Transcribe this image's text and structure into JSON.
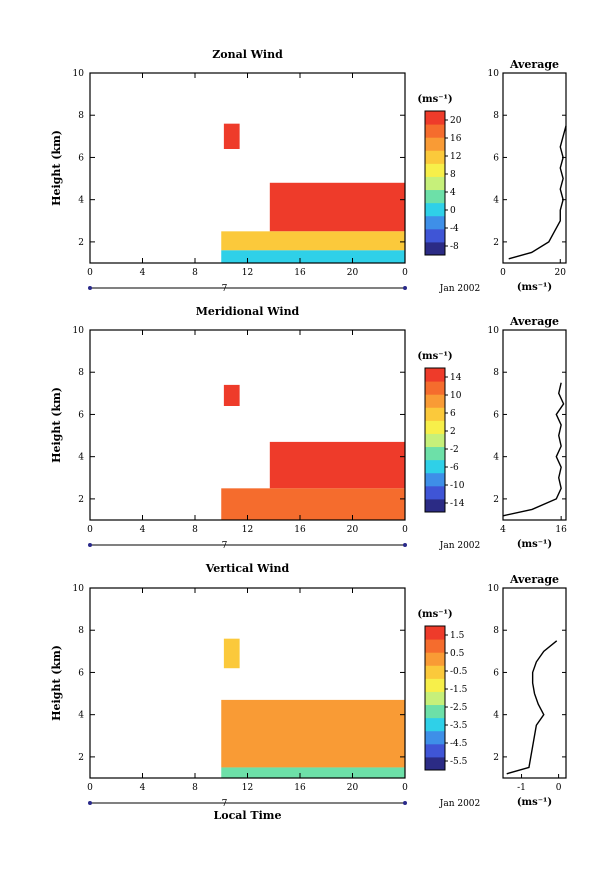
{
  "chart_data": [
    {
      "type": "heatmap",
      "title": "Zonal Wind",
      "ylabel": "Height (km)",
      "xlabel": "",
      "xlim": [
        0,
        24
      ],
      "ylim": [
        1,
        10
      ],
      "xticks": [
        "0",
        "4",
        "8",
        "12",
        "16",
        "20",
        "0"
      ],
      "yticks": [
        "2",
        "4",
        "6",
        "8",
        "10"
      ],
      "date_label": "7",
      "date_suffix": "Jan 2002",
      "colorbar": {
        "unit": "(ms⁻¹)",
        "ticks": [
          "20",
          "16",
          "12",
          "8",
          "4",
          "0",
          "-4",
          "-8"
        ],
        "colors": [
          "#2b2b85",
          "#3f55d6",
          "#3e8fe8",
          "#2fd0e8",
          "#6de0a8",
          "#c6f07a",
          "#f7ef4a",
          "#fbc93b",
          "#f99b35",
          "#f56c2d",
          "#ee3b2a"
        ]
      },
      "series": [
        {
          "region": "upper-patch",
          "t_start": 10.2,
          "t_end": 11.4,
          "z_low": 6.4,
          "z_high": 7.6,
          "value": 20
        },
        {
          "region": "upper-band",
          "t_start": 13.7,
          "t_end": 24,
          "z_low": 2.5,
          "z_high": 4.8,
          "value": 20
        },
        {
          "region": "mid-band",
          "t_start": 10,
          "t_end": 24,
          "z_low": 1.6,
          "z_high": 2.5,
          "value": 12
        },
        {
          "region": "low-band",
          "t_start": 10,
          "t_end": 24,
          "z_low": 1,
          "z_high": 1.6,
          "value": 0
        }
      ],
      "average_profile": {
        "title": "Average",
        "xlabel": "(ms⁻¹)",
        "xticks": [
          "0",
          "20"
        ],
        "xlim": [
          0,
          22
        ],
        "heights": [
          1.2,
          1.5,
          2,
          2.5,
          3,
          3.5,
          4,
          4.5,
          5,
          5.5,
          6,
          6.5,
          7,
          7.5
        ],
        "values": [
          2,
          10,
          16,
          18,
          20,
          20,
          21,
          20,
          21,
          20,
          21,
          20,
          21,
          22
        ]
      }
    },
    {
      "type": "heatmap",
      "title": "Meridional Wind",
      "ylabel": "Height (km)",
      "xlabel": "",
      "xlim": [
        0,
        24
      ],
      "ylim": [
        1,
        10
      ],
      "xticks": [
        "0",
        "4",
        "8",
        "12",
        "16",
        "20",
        "0"
      ],
      "yticks": [
        "2",
        "4",
        "6",
        "8",
        "10"
      ],
      "date_label": "7",
      "date_suffix": "Jan 2002",
      "colorbar": {
        "unit": "(ms⁻¹)",
        "ticks": [
          "14",
          "10",
          "6",
          "2",
          "-2",
          "-6",
          "-10",
          "-14"
        ],
        "colors": [
          "#2b2b85",
          "#3f55d6",
          "#3e8fe8",
          "#2fd0e8",
          "#6de0a8",
          "#c6f07a",
          "#f7ef4a",
          "#fbc93b",
          "#f99b35",
          "#f56c2d",
          "#ee3b2a"
        ]
      },
      "series": [
        {
          "region": "upper-patch",
          "t_start": 10.2,
          "t_end": 11.4,
          "z_low": 6.4,
          "z_high": 7.4,
          "value": 14
        },
        {
          "region": "upper-band",
          "t_start": 13.7,
          "t_end": 24,
          "z_low": 2.5,
          "z_high": 4.7,
          "value": 14
        },
        {
          "region": "low-band",
          "t_start": 10,
          "t_end": 24,
          "z_low": 1,
          "z_high": 2.5,
          "value": 12
        }
      ],
      "average_profile": {
        "title": "Average",
        "xlabel": "(ms⁻¹)",
        "xticks": [
          "4",
          "16"
        ],
        "xlim": [
          4,
          17
        ],
        "heights": [
          1.2,
          1.5,
          2,
          2.5,
          3,
          3.5,
          4,
          4.5,
          5,
          5.5,
          6,
          6.5,
          7,
          7.5
        ],
        "values": [
          4,
          10,
          15,
          16,
          15.5,
          16,
          15,
          16,
          15.5,
          16,
          15,
          16.5,
          15.5,
          16
        ]
      }
    },
    {
      "type": "heatmap",
      "title": "Vertical Wind",
      "ylabel": "Height (km)",
      "xlabel": "Local Time",
      "xlim": [
        0,
        24
      ],
      "ylim": [
        1,
        10
      ],
      "xticks": [
        "0",
        "4",
        "8",
        "12",
        "16",
        "20",
        "0"
      ],
      "yticks": [
        "2",
        "4",
        "6",
        "8",
        "10"
      ],
      "date_label": "7",
      "date_suffix": "Jan 2002",
      "colorbar": {
        "unit": "(ms⁻¹)",
        "ticks": [
          "1.5",
          "0.5",
          "-0.5",
          "-1.5",
          "-2.5",
          "-3.5",
          "-4.5",
          "-5.5"
        ],
        "colors": [
          "#2b2b85",
          "#3f55d6",
          "#3e8fe8",
          "#2fd0e8",
          "#6de0a8",
          "#c6f07a",
          "#f7ef4a",
          "#fbc93b",
          "#f99b35",
          "#f56c2d",
          "#ee3b2a"
        ]
      },
      "series": [
        {
          "region": "upper-patch",
          "t_start": 10.2,
          "t_end": 11.4,
          "z_low": 6.2,
          "z_high": 7.6,
          "value": -0.8
        },
        {
          "region": "main-band",
          "t_start": 10,
          "t_end": 24,
          "z_low": 1.5,
          "z_high": 4.7,
          "value": 0.3
        },
        {
          "region": "low-band",
          "t_start": 10,
          "t_end": 24,
          "z_low": 1,
          "z_high": 1.5,
          "value": -3
        }
      ],
      "average_profile": {
        "title": "Average",
        "xlabel": "(ms⁻¹)",
        "xticks": [
          "-1",
          "0"
        ],
        "xlim": [
          -1.5,
          0.2
        ],
        "heights": [
          1.2,
          1.5,
          2,
          2.5,
          3,
          3.5,
          4,
          4.5,
          5,
          5.5,
          6,
          6.5,
          7,
          7.5
        ],
        "values": [
          -1.4,
          -0.8,
          -0.75,
          -0.7,
          -0.65,
          -0.6,
          -0.4,
          -0.55,
          -0.65,
          -0.7,
          -0.7,
          -0.6,
          -0.4,
          -0.05
        ]
      }
    }
  ]
}
